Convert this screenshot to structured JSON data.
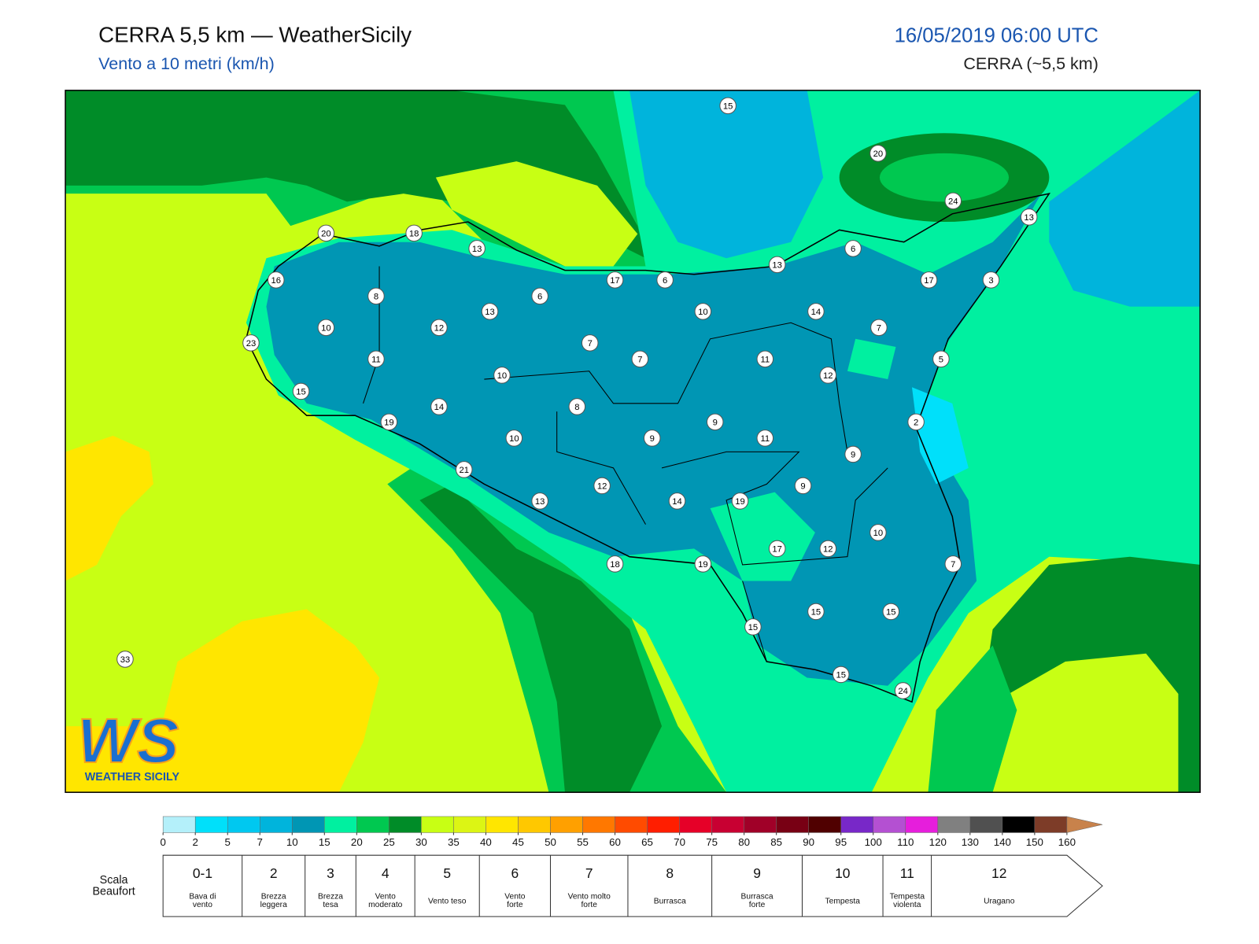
{
  "header": {
    "title": "CERRA 5,5 km — WeatherSicily",
    "subtitle": "Vento a 10 metri (km/h)",
    "valid_time": "16/05/2019 06:00 UTC",
    "model": "CERRA (~5,5 km)"
  },
  "map": {
    "station_values": [
      15,
      20,
      24,
      13,
      20,
      18,
      13,
      6,
      13,
      16,
      17,
      6,
      17,
      3,
      8,
      6,
      13,
      10,
      14,
      10,
      12,
      7,
      23,
      7,
      7,
      11,
      11,
      5,
      10,
      12,
      15,
      14,
      8,
      19,
      9,
      2,
      10,
      9,
      11,
      9,
      21,
      9,
      12,
      13,
      14,
      19,
      10,
      17,
      12,
      18,
      19,
      7,
      15,
      15,
      15,
      15,
      24,
      33
    ]
  },
  "colorbar": {
    "ticks": [
      0,
      2,
      5,
      7,
      10,
      15,
      20,
      25,
      30,
      35,
      40,
      45,
      50,
      55,
      60,
      65,
      70,
      75,
      80,
      85,
      90,
      95,
      100,
      110,
      120,
      130,
      140,
      150,
      160
    ],
    "colors": [
      "#b4f0fa",
      "#00e0fa",
      "#00c8f0",
      "#00b4dc",
      "#0096b4",
      "#00f0a0",
      "#00c850",
      "#008c28",
      "#c8ff14",
      "#dcf514",
      "#ffe600",
      "#ffc800",
      "#ffa000",
      "#ff7800",
      "#ff4b00",
      "#ff1e00",
      "#e60028",
      "#c80032",
      "#a00028",
      "#780014",
      "#500000",
      "#7828c8",
      "#b450d2",
      "#e61edc",
      "#808080",
      "#505050",
      "#000000",
      "#7d3c28",
      "#c8824b"
    ]
  },
  "beaufort": {
    "label": [
      "Scala",
      "Beaufort"
    ],
    "classes": [
      {
        "force": "0-1",
        "description": [
          "Bava di",
          "vento"
        ]
      },
      {
        "force": "2",
        "description": [
          "Brezza",
          "leggera"
        ]
      },
      {
        "force": "3",
        "description": [
          "Brezza",
          "tesa"
        ]
      },
      {
        "force": "4",
        "description": [
          "Vento",
          "moderato"
        ]
      },
      {
        "force": "5",
        "description": [
          "Vento teso"
        ]
      },
      {
        "force": "6",
        "description": [
          "Vento",
          "forte"
        ]
      },
      {
        "force": "7",
        "description": [
          "Vento molto",
          "forte"
        ]
      },
      {
        "force": "8",
        "description": [
          "Burrasca"
        ]
      },
      {
        "force": "9",
        "description": [
          "Burrasca",
          "forte"
        ]
      },
      {
        "force": "10",
        "description": [
          "Tempesta"
        ]
      },
      {
        "force": "11",
        "description": [
          "Tempesta",
          "violenta"
        ]
      },
      {
        "force": "12",
        "description": [
          "Uragano"
        ]
      }
    ]
  },
  "logo": {
    "mark": "WS",
    "name": "WEATHER SICILY"
  }
}
